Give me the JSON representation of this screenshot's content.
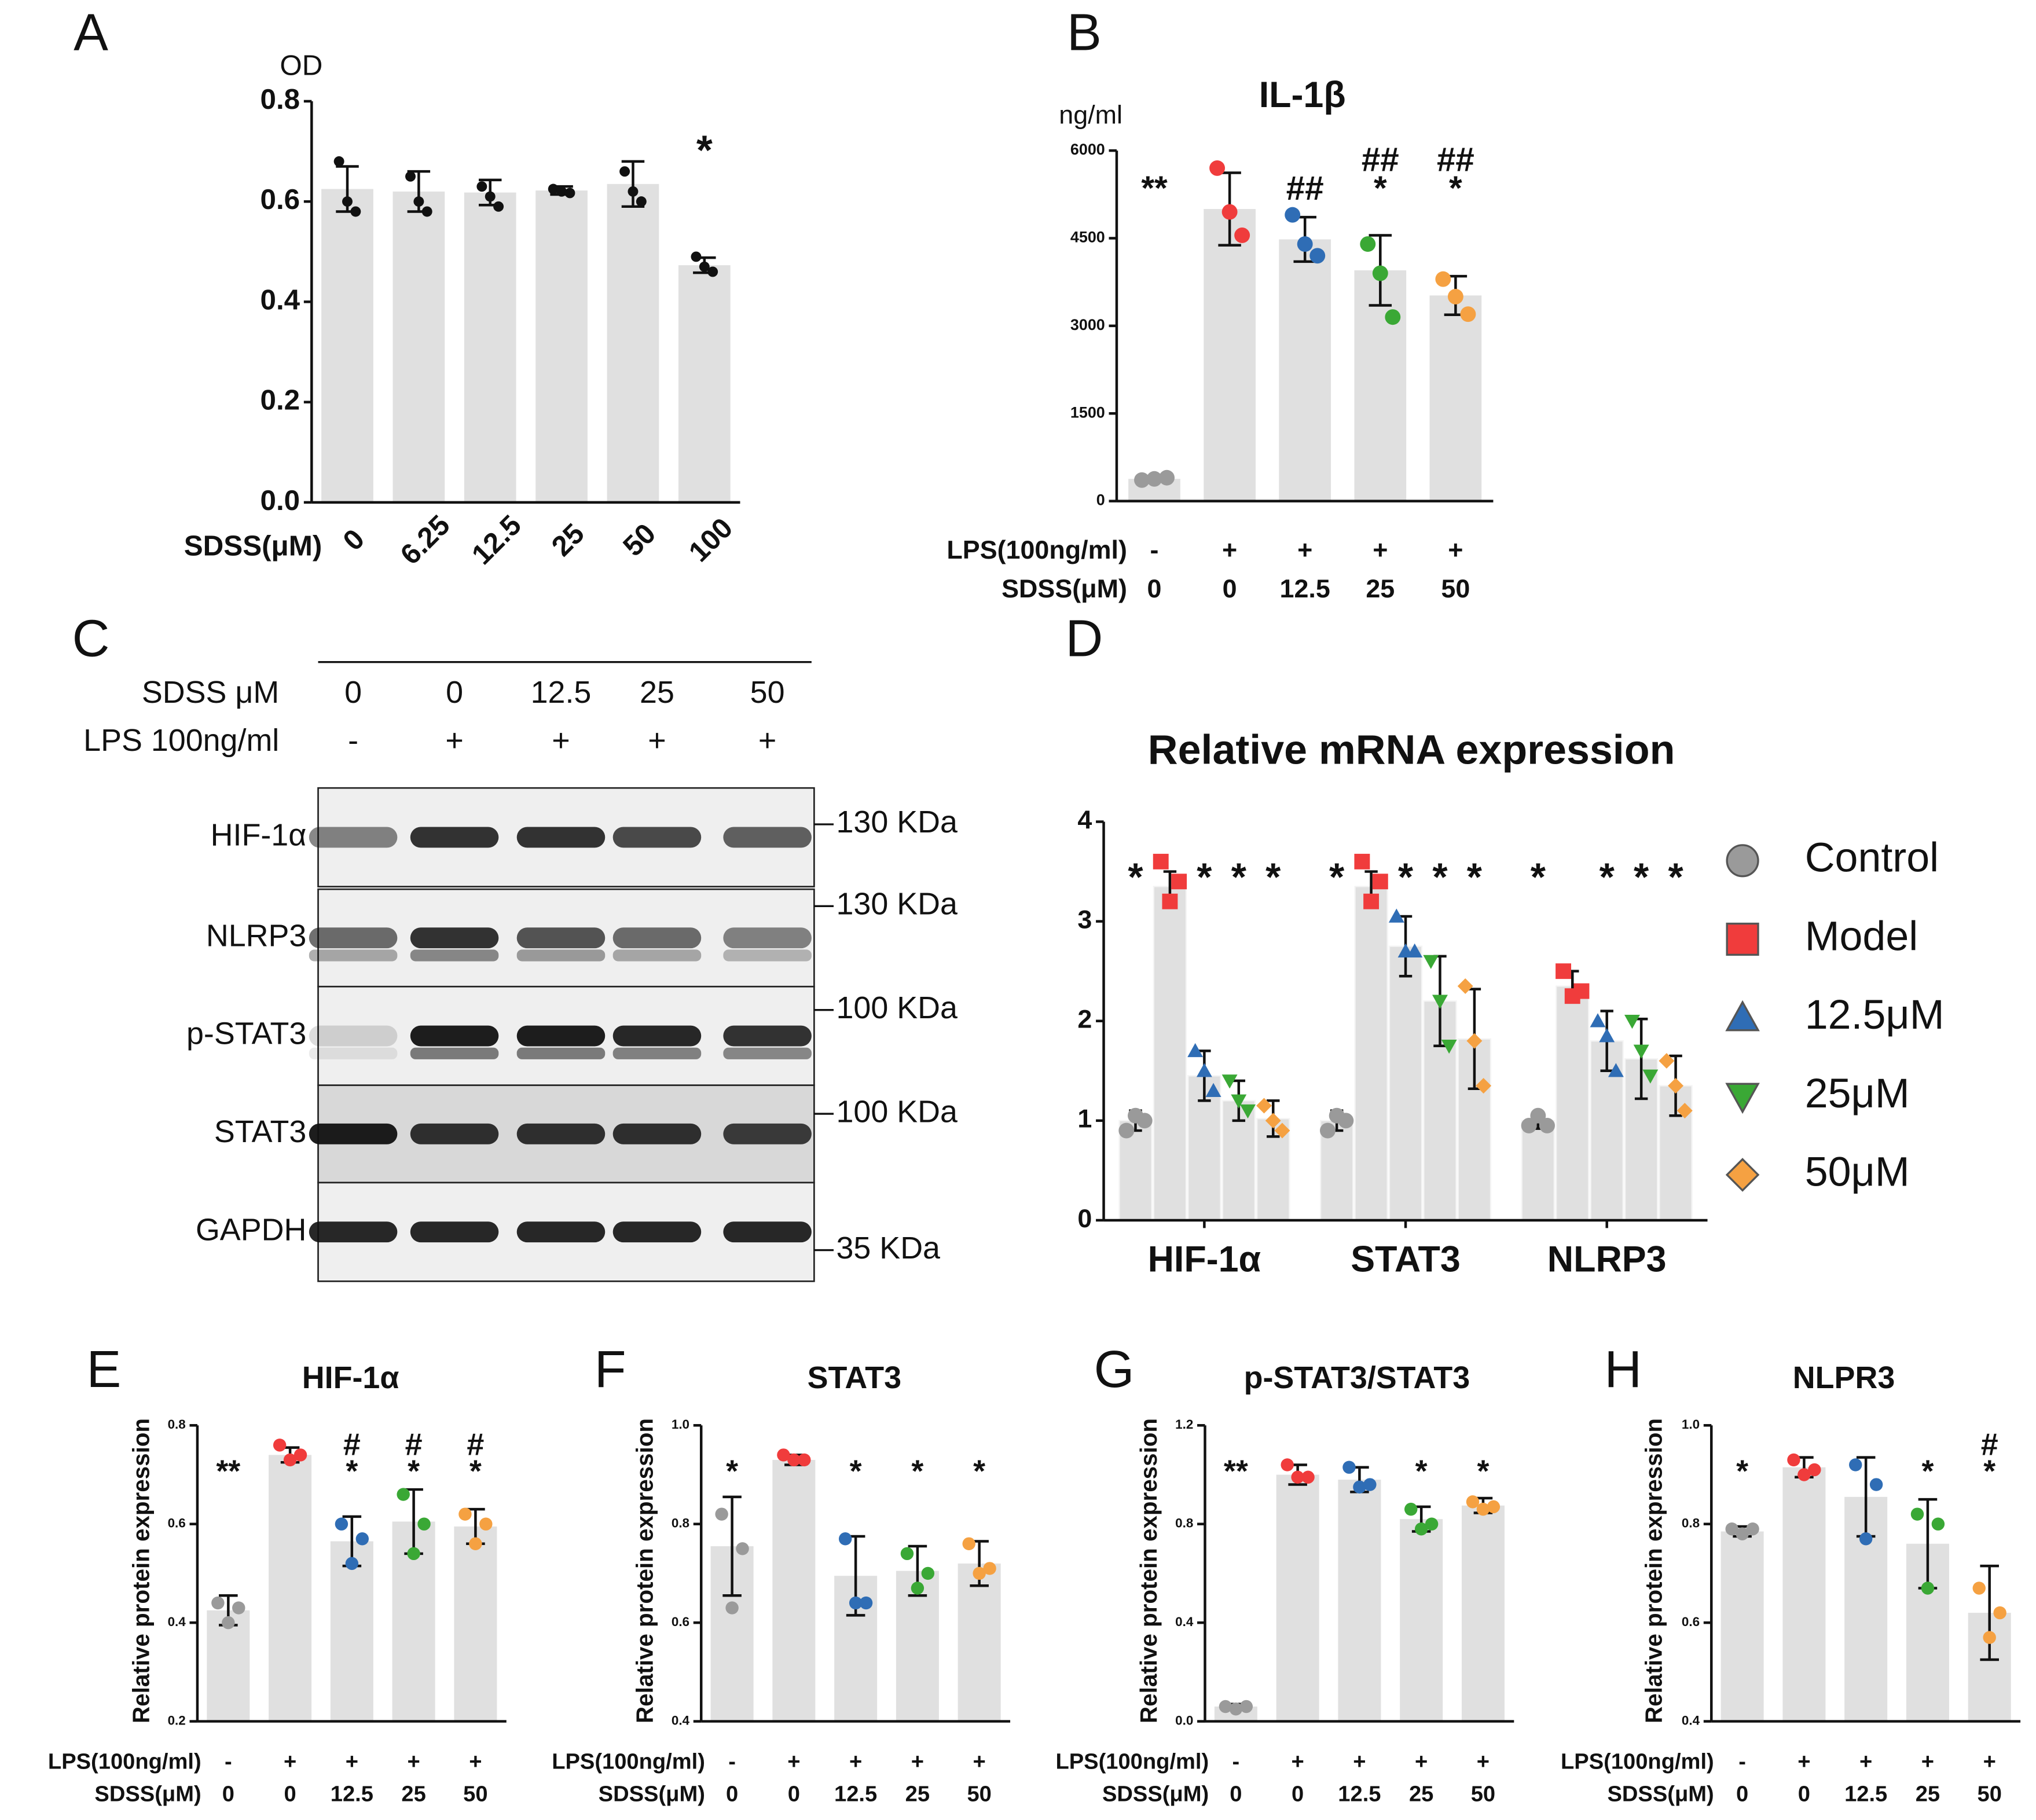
{
  "chart_data": [
    {
      "type": "bar",
      "panel": "A",
      "y_label": "OD",
      "x_label": "SDSS(μM)",
      "color": "#e0e0e0",
      "point_color": "#111111",
      "categories": [
        "0",
        "6.25",
        "12.5",
        "25",
        "50",
        "100"
      ],
      "values": [
        0.625,
        0.62,
        0.618,
        0.622,
        0.635,
        0.473
      ],
      "errors": [
        0.045,
        0.04,
        0.025,
        0.008,
        0.045,
        0.015
      ],
      "points": [
        [
          0.68,
          0.6,
          0.58
        ],
        [
          0.65,
          0.6,
          0.58
        ],
        [
          0.63,
          0.61,
          0.59
        ],
        [
          0.625,
          0.62,
          0.617
        ],
        [
          0.66,
          0.62,
          0.6
        ],
        [
          0.49,
          0.47,
          0.46
        ]
      ],
      "annotations": [
        [],
        [],
        [],
        [],
        [],
        [
          "*"
        ]
      ],
      "ylim": [
        0,
        0.8
      ],
      "yticks": [
        {
          "value": 0,
          "label": "0.0"
        },
        0.2,
        0.4,
        0.6,
        0.8
      ]
    },
    {
      "type": "bar",
      "panel": "B",
      "title": "IL-1β",
      "y_label": "ng/ml",
      "color": "#e0e0e0",
      "x_label_rows": [
        {
          "label": "LPS(100ng/ml)",
          "values": [
            "-",
            "+",
            "+",
            "+",
            "+"
          ]
        },
        {
          "label": "SDSS(μM)",
          "values": [
            "0",
            "0",
            "12.5",
            "25",
            "50"
          ]
        }
      ],
      "point_colors": [
        "#9a9a9a",
        "#f03c3c",
        "#2f6db5",
        "#3aa835",
        "#f5a142"
      ],
      "values": [
        380,
        5000,
        4480,
        3950,
        3520
      ],
      "errors": [
        30,
        620,
        380,
        600,
        330
      ],
      "points": [
        [
          360,
          380,
          400
        ],
        [
          5700,
          4950,
          4550
        ],
        [
          4900,
          4400,
          4200
        ],
        [
          4400,
          3900,
          3150
        ],
        [
          3800,
          3500,
          3200
        ]
      ],
      "annotations": [
        [
          "**"
        ],
        [],
        [
          "##"
        ],
        [
          "##",
          "*"
        ],
        [
          "##",
          "*"
        ]
      ],
      "ylim": [
        0,
        6000
      ],
      "yticks": [
        0,
        1500,
        3000,
        4500,
        6000
      ]
    },
    {
      "type": "grouped_bar",
      "panel": "D",
      "title": "Relative mRNA expression",
      "color": "#e0e0e0",
      "categories": [
        "HIF-1α",
        "STAT3",
        "NLRP3"
      ],
      "series": [
        {
          "name": "Control",
          "color": "#9a9a9a",
          "marker": "circle",
          "values": [
            1.0,
            1.0,
            1.0
          ],
          "errors": [
            0.1,
            0.1,
            0.08
          ],
          "points": [
            [
              0.9,
              1.05,
              1.0
            ],
            [
              0.9,
              1.05,
              1.0
            ],
            [
              0.95,
              1.05,
              0.95
            ]
          ]
        },
        {
          "name": "Model",
          "color": "#f03c3c",
          "marker": "square",
          "values": [
            3.35,
            3.35,
            2.35
          ],
          "errors": [
            0.15,
            0.15,
            0.15
          ],
          "points": [
            [
              3.6,
              3.2,
              3.4
            ],
            [
              3.6,
              3.2,
              3.4
            ],
            [
              2.5,
              2.25,
              2.3
            ]
          ]
        },
        {
          "name": "12.5μM",
          "color": "#2f6db5",
          "marker": "triangle",
          "values": [
            1.45,
            2.75,
            1.8
          ],
          "errors": [
            0.25,
            0.3,
            0.3
          ],
          "points": [
            [
              1.7,
              1.5,
              1.3
            ],
            [
              3.05,
              2.7,
              2.7
            ],
            [
              2.0,
              1.85,
              1.5
            ]
          ]
        },
        {
          "name": "25μM",
          "color": "#3aa835",
          "marker": "triangle-down",
          "values": [
            1.2,
            2.2,
            1.62
          ],
          "errors": [
            0.2,
            0.45,
            0.4
          ],
          "points": [
            [
              1.4,
              1.2,
              1.1
            ],
            [
              2.6,
              2.2,
              1.75
            ],
            [
              2.0,
              1.7,
              1.45
            ]
          ]
        },
        {
          "name": "50μM",
          "color": "#f5a142",
          "marker": "diamond",
          "values": [
            1.02,
            1.82,
            1.35
          ],
          "errors": [
            0.18,
            0.5,
            0.3
          ],
          "points": [
            [
              1.15,
              1.0,
              0.9
            ],
            [
              2.35,
              1.8,
              1.35
            ],
            [
              1.6,
              1.35,
              1.1
            ]
          ]
        }
      ],
      "annotations": [
        {
          "text": "*",
          "category": "HIF-1α",
          "series": "Control"
        },
        {
          "text": "*",
          "category": "HIF-1α",
          "series": "12.5μM"
        },
        {
          "text": "*",
          "category": "HIF-1α",
          "series": "25μM"
        },
        {
          "text": "*",
          "category": "HIF-1α",
          "series": "50μM"
        },
        {
          "text": "*",
          "category": "STAT3",
          "series": "Control"
        },
        {
          "text": "*",
          "category": "STAT3",
          "series": "12.5μM"
        },
        {
          "text": "*",
          "category": "STAT3",
          "series": "25μM"
        },
        {
          "text": "*",
          "category": "STAT3",
          "series": "50μM"
        },
        {
          "text": "*",
          "category": "NLRP3",
          "series": "Control"
        },
        {
          "text": "*",
          "category": "NLRP3",
          "series": "12.5μM"
        },
        {
          "text": "*",
          "category": "NLRP3",
          "series": "25μM"
        },
        {
          "text": "*",
          "category": "NLRP3",
          "series": "50μM"
        }
      ],
      "ylim": [
        0,
        4
      ],
      "yticks": [
        0,
        1,
        2,
        3,
        4
      ]
    },
    {
      "type": "bar",
      "panel": "E",
      "title": "HIF-1α",
      "y_label": "Relative protein expression",
      "color": "#e0e0e0",
      "x_label_rows": [
        {
          "label": "LPS(100ng/ml)",
          "values": [
            "-",
            "+",
            "+",
            "+",
            "+"
          ]
        },
        {
          "label": "SDSS(μM)",
          "values": [
            "0",
            "0",
            "12.5",
            "25",
            "50"
          ]
        }
      ],
      "point_colors": [
        "#9a9a9a",
        "#f03c3c",
        "#2f6db5",
        "#3aa835",
        "#f5a142"
      ],
      "values": [
        0.425,
        0.74,
        0.565,
        0.605,
        0.595
      ],
      "errors": [
        0.03,
        0.015,
        0.05,
        0.065,
        0.035
      ],
      "points": [
        [
          0.44,
          0.4,
          0.43
        ],
        [
          0.76,
          0.73,
          0.74
        ],
        [
          0.6,
          0.52,
          0.57
        ],
        [
          0.66,
          0.54,
          0.6
        ],
        [
          0.62,
          0.56,
          0.6
        ]
      ],
      "annotations": [
        [
          "**"
        ],
        [],
        [
          "#",
          "*"
        ],
        [
          "#",
          "*"
        ],
        [
          "#",
          "*"
        ]
      ],
      "ylim": [
        0.2,
        0.8
      ],
      "yticks": [
        0.2,
        0.4,
        0.6,
        0.8
      ]
    },
    {
      "type": "bar",
      "panel": "F",
      "title": "STAT3",
      "y_label": "Relative protein expression",
      "color": "#e0e0e0",
      "x_label_rows": [
        {
          "label": "LPS(100ng/ml)",
          "values": [
            "-",
            "+",
            "+",
            "+",
            "+"
          ]
        },
        {
          "label": "SDSS(μM)",
          "values": [
            "0",
            "0",
            "12.5",
            "25",
            "50"
          ]
        }
      ],
      "point_colors": [
        "#9a9a9a",
        "#f03c3c",
        "#2f6db5",
        "#3aa835",
        "#f5a142"
      ],
      "values": [
        0.755,
        0.93,
        0.695,
        0.705,
        0.72
      ],
      "errors": [
        0.1,
        0.01,
        0.08,
        0.05,
        0.045
      ],
      "points": [
        [
          0.82,
          0.63,
          0.75
        ],
        [
          0.94,
          0.93,
          0.93
        ],
        [
          0.77,
          0.64,
          0.64
        ],
        [
          0.74,
          0.67,
          0.7
        ],
        [
          0.76,
          0.7,
          0.71
        ]
      ],
      "annotations": [
        [
          "*"
        ],
        [],
        [
          "*"
        ],
        [
          "*"
        ],
        [
          "*"
        ]
      ],
      "ylim": [
        0.4,
        1.0
      ],
      "yticks": [
        0.4,
        0.6,
        0.8,
        {
          "value": 1,
          "label": "1.0"
        }
      ]
    },
    {
      "type": "bar",
      "panel": "G",
      "title": "p-STAT3/STAT3",
      "y_label": "Relative protein expression",
      "color": "#e0e0e0",
      "x_label_rows": [
        {
          "label": "LPS(100ng/ml)",
          "values": [
            "-",
            "+",
            "+",
            "+",
            "+"
          ]
        },
        {
          "label": "SDSS(μM)",
          "values": [
            "0",
            "0",
            "12.5",
            "25",
            "50"
          ]
        }
      ],
      "point_colors": [
        "#9a9a9a",
        "#f03c3c",
        "#2f6db5",
        "#3aa835",
        "#f5a142"
      ],
      "values": [
        0.06,
        1.0,
        0.98,
        0.82,
        0.875
      ],
      "errors": [
        0.01,
        0.04,
        0.05,
        0.05,
        0.03
      ],
      "points": [
        [
          0.06,
          0.05,
          0.06
        ],
        [
          1.04,
          0.99,
          0.99
        ],
        [
          1.03,
          0.95,
          0.96
        ],
        [
          0.86,
          0.78,
          0.8
        ],
        [
          0.89,
          0.86,
          0.87
        ]
      ],
      "annotations": [
        [
          "**"
        ],
        [],
        [],
        [
          "*"
        ],
        [
          "*"
        ]
      ],
      "ylim": [
        0,
        1.2
      ],
      "yticks": [
        {
          "value": 0,
          "label": "0.0"
        },
        0.4,
        0.8,
        1.2
      ]
    },
    {
      "type": "bar",
      "panel": "H",
      "title": "NLPR3",
      "y_label": "Relative protein expression",
      "color": "#e0e0e0",
      "x_label_rows": [
        {
          "label": "LPS(100ng/ml)",
          "values": [
            "-",
            "+",
            "+",
            "+",
            "+"
          ]
        },
        {
          "label": "SDSS(μM)",
          "values": [
            "0",
            "0",
            "12.5",
            "25",
            "50"
          ]
        }
      ],
      "point_colors": [
        "#9a9a9a",
        "#f03c3c",
        "#2f6db5",
        "#3aa835",
        "#f5a142"
      ],
      "values": [
        0.785,
        0.915,
        0.855,
        0.76,
        0.62
      ],
      "errors": [
        0.01,
        0.02,
        0.08,
        0.09,
        0.095
      ],
      "points": [
        [
          0.79,
          0.78,
          0.79
        ],
        [
          0.93,
          0.9,
          0.91
        ],
        [
          0.92,
          0.77,
          0.88
        ],
        [
          0.82,
          0.67,
          0.8
        ],
        [
          0.67,
          0.57,
          0.62
        ]
      ],
      "annotations": [
        [
          "*"
        ],
        [],
        [],
        [
          "*"
        ],
        [
          "#",
          "*"
        ]
      ],
      "ylim": [
        0.4,
        1.0
      ],
      "yticks": [
        0.4,
        0.6,
        0.8,
        {
          "value": 1,
          "label": "1.0"
        }
      ]
    }
  ],
  "blot": {
    "panel": "C",
    "rows": [
      {
        "label": "SDSS μM",
        "values": [
          "0",
          "0",
          "12.5",
          "25",
          "50"
        ]
      },
      {
        "label": "LPS 100ng/ml",
        "values": [
          "-",
          "+",
          "+",
          "+",
          "+"
        ]
      }
    ],
    "bands": [
      "HIF-1α",
      "NLRP3",
      "p-STAT3",
      "STAT3",
      "GAPDH"
    ],
    "markers": [
      "130 KDa",
      "130 KDa",
      "100 KDa",
      "100 KDa",
      "35 KDa"
    ]
  }
}
